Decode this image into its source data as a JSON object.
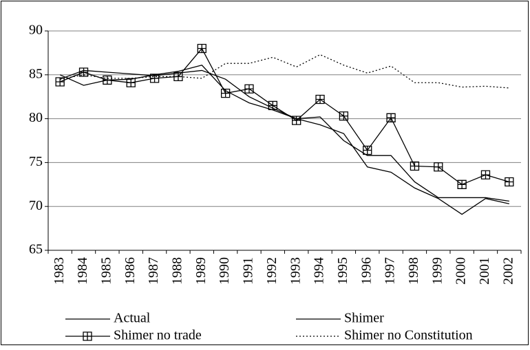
{
  "chart_data": {
    "type": "line",
    "categories": [
      "1983",
      "1984",
      "1985",
      "1986",
      "1987",
      "1988",
      "1989",
      "1990",
      "1991",
      "1992",
      "1993",
      "1994",
      "1995",
      "1996",
      "1997",
      "1998",
      "1999",
      "2000",
      "2001",
      "2002"
    ],
    "series": [
      {
        "name": "Actual",
        "color": "#000000",
        "style": "solid",
        "values": [
          85.0,
          83.8,
          84.4,
          84.5,
          85.0,
          85.4,
          86.1,
          83.2,
          81.8,
          81.0,
          80.0,
          80.2,
          77.5,
          75.8,
          75.8,
          72.8,
          71.0,
          71.0,
          71.0,
          70.6
        ]
      },
      {
        "name": "Shimer",
        "color": "#000000",
        "style": "solid",
        "values": [
          84.5,
          85.5,
          85.3,
          85.1,
          84.9,
          85.2,
          85.5,
          84.5,
          82.5,
          81.2,
          80.0,
          79.3,
          78.3,
          74.5,
          73.9,
          72.1,
          70.9,
          69.1,
          70.9,
          70.3
        ]
      },
      {
        "name": "Shimer no trade",
        "color": "#000000",
        "style": "solid",
        "marker": "boxplus",
        "values": [
          84.2,
          85.3,
          84.4,
          84.1,
          84.6,
          84.8,
          88.0,
          82.9,
          83.4,
          81.5,
          79.8,
          82.2,
          80.3,
          76.4,
          80.1,
          74.6,
          74.5,
          72.5,
          73.6,
          72.8
        ]
      },
      {
        "name": "Shimer no Constitution",
        "color": "#000000",
        "style": "dotted",
        "values": [
          84.5,
          85.0,
          84.6,
          84.6,
          84.8,
          84.8,
          84.6,
          86.3,
          86.3,
          87.0,
          85.9,
          87.3,
          86.1,
          85.2,
          86.0,
          84.1,
          84.1,
          83.6,
          83.7,
          83.5
        ]
      }
    ],
    "ylim": [
      65,
      90
    ],
    "yticks": [
      65,
      70,
      75,
      80,
      85,
      90
    ],
    "grid": true
  }
}
